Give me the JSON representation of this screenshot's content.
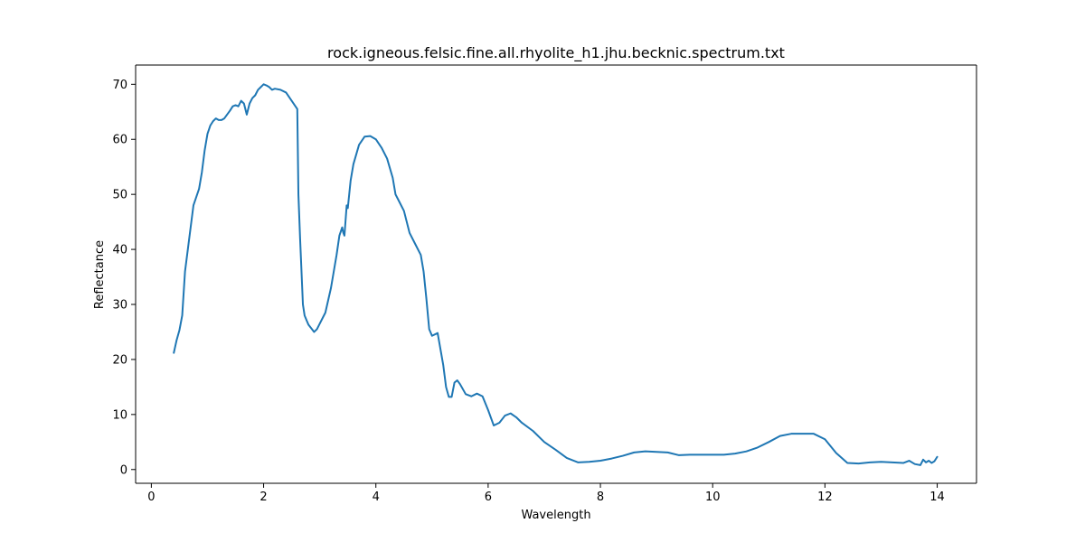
{
  "chart_data": {
    "type": "line",
    "title": "rock.igneous.felsic.fine.all.rhyolite_h1.jhu.becknic.spectrum.txt",
    "xlabel": "Wavelength",
    "ylabel": "Reflectance",
    "xlim": [
      -0.28,
      14.7
    ],
    "ylim": [
      -2.5,
      73.5
    ],
    "x_ticks": [
      0,
      2,
      4,
      6,
      8,
      10,
      12,
      14
    ],
    "y_ticks": [
      0,
      10,
      20,
      30,
      40,
      50,
      60,
      70
    ],
    "grid": false,
    "legend": "none",
    "line_color": "#1f77b4",
    "series": [
      {
        "x": [
          0.4,
          0.45,
          0.5,
          0.55,
          0.6,
          0.65,
          0.7,
          0.75,
          0.8,
          0.85,
          0.9,
          0.95,
          1.0,
          1.05,
          1.1,
          1.15,
          1.2,
          1.25,
          1.3,
          1.35,
          1.4,
          1.45,
          1.5,
          1.55,
          1.6,
          1.65,
          1.7,
          1.75,
          1.8,
          1.85,
          1.9,
          1.95,
          2.0,
          2.05,
          2.1,
          2.15,
          2.2,
          2.3,
          2.4,
          2.5,
          2.6,
          2.62,
          2.65,
          2.7,
          2.73,
          2.77,
          2.8,
          2.9,
          2.95,
          3.0,
          3.1,
          3.2,
          3.3,
          3.35,
          3.4,
          3.42,
          3.44,
          3.48,
          3.5,
          3.55,
          3.6,
          3.7,
          3.8,
          3.9,
          4.0,
          4.1,
          4.2,
          4.3,
          4.35,
          4.4,
          4.5,
          4.6,
          4.7,
          4.8,
          4.85,
          4.9,
          4.95,
          5.0,
          5.1,
          5.2,
          5.25,
          5.3,
          5.35,
          5.4,
          5.45,
          5.5,
          5.6,
          5.7,
          5.8,
          5.9,
          6.0,
          6.1,
          6.2,
          6.3,
          6.4,
          6.5,
          6.6,
          6.8,
          7.0,
          7.2,
          7.4,
          7.6,
          7.8,
          8.0,
          8.2,
          8.4,
          8.6,
          8.8,
          9.0,
          9.2,
          9.4,
          9.6,
          9.8,
          10.0,
          10.2,
          10.4,
          10.6,
          10.8,
          11.0,
          11.2,
          11.4,
          11.6,
          11.8,
          12.0,
          12.2,
          12.4,
          12.6,
          12.8,
          13.0,
          13.2,
          13.4,
          13.5,
          13.6,
          13.7,
          13.75,
          13.8,
          13.85,
          13.9,
          13.95,
          14.0
        ],
        "y": [
          21.2,
          23.5,
          25.3,
          28.0,
          36.0,
          40.0,
          44.0,
          48.0,
          49.5,
          51.0,
          54.0,
          58.0,
          61.0,
          62.5,
          63.3,
          63.8,
          63.5,
          63.5,
          63.8,
          64.5,
          65.2,
          66.0,
          66.2,
          66.0,
          67.0,
          66.5,
          64.5,
          66.5,
          67.5,
          68.0,
          69.0,
          69.5,
          70.0,
          69.8,
          69.5,
          69.0,
          69.2,
          69.0,
          68.5,
          67.0,
          65.5,
          50.0,
          42.0,
          30.0,
          28.0,
          27.0,
          26.3,
          25.0,
          25.5,
          26.5,
          28.5,
          33.0,
          39.0,
          42.5,
          44.0,
          43.0,
          42.5,
          48.0,
          47.5,
          52.5,
          55.5,
          59.0,
          60.5,
          60.6,
          60.0,
          58.5,
          56.5,
          53.0,
          50.0,
          49.0,
          47.0,
          43.0,
          41.0,
          39.0,
          36.0,
          31.0,
          25.5,
          24.3,
          24.8,
          19.0,
          15.0,
          13.2,
          13.2,
          15.8,
          16.2,
          15.5,
          13.7,
          13.3,
          13.8,
          13.3,
          10.8,
          8.0,
          8.5,
          9.8,
          10.2,
          9.5,
          8.5,
          7.0,
          5.0,
          3.6,
          2.1,
          1.3,
          1.4,
          1.6,
          2.0,
          2.5,
          3.1,
          3.3,
          3.2,
          3.1,
          2.6,
          2.7,
          2.7,
          2.7,
          2.7,
          2.9,
          3.3,
          4.0,
          5.0,
          6.1,
          6.5,
          6.5,
          6.5,
          5.5,
          3.0,
          1.2,
          1.1,
          1.3,
          1.4,
          1.3,
          1.2,
          1.6,
          1.0,
          0.8,
          1.8,
          1.3,
          1.6,
          1.2,
          1.5,
          2.3
        ]
      }
    ]
  }
}
